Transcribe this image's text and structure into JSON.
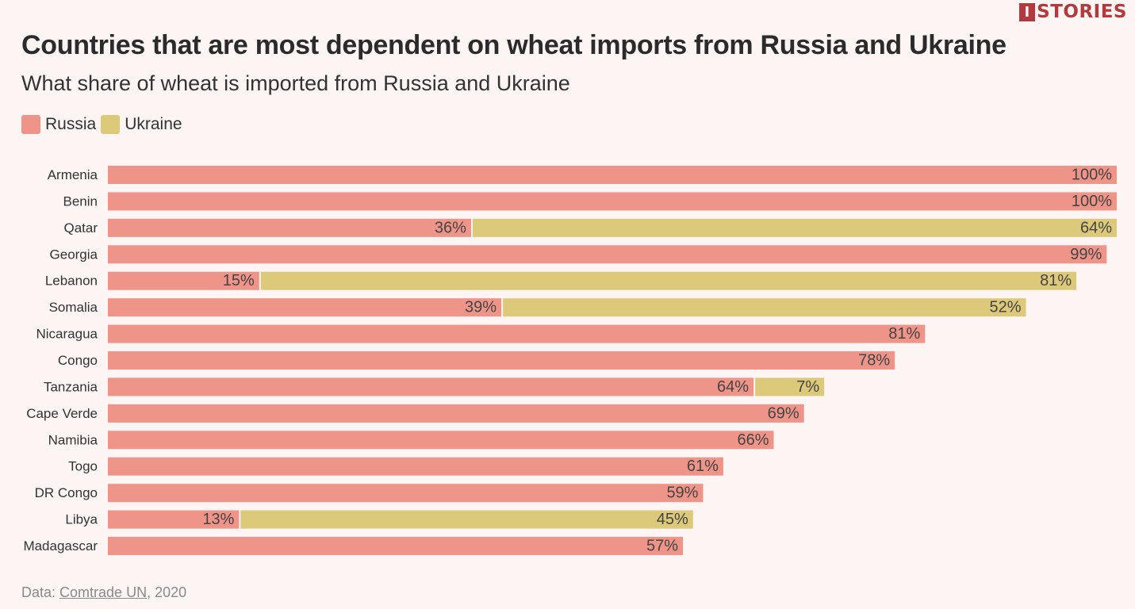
{
  "brand": {
    "logo_mark": "I",
    "logo_text": "STORIES"
  },
  "title": "Countries that are most dependent on wheat imports from Russia and Ukraine",
  "subtitle": "What share of wheat is imported from Russia and Ukraine",
  "legend": [
    {
      "name": "Russia",
      "color": "#ef9488"
    },
    {
      "name": "Ukraine",
      "color": "#ddc97a"
    }
  ],
  "footer": {
    "prefix": "Data: ",
    "link_text": "Comtrade UN",
    "suffix": ", 2020"
  },
  "chart_data": {
    "type": "bar",
    "orientation": "horizontal",
    "stacked": true,
    "title": "Countries that are most dependent on wheat imports from Russia and Ukraine",
    "subtitle": "What share of wheat is imported from Russia and Ukraine",
    "xlim": [
      0,
      100
    ],
    "grid": false,
    "legend_position": "top-left",
    "value_format": "percent",
    "categories": [
      "Armenia",
      "Benin",
      "Qatar",
      "Georgia",
      "Lebanon",
      "Somalia",
      "Nicaragua",
      "Congo",
      "Tanzania",
      "Cape Verde",
      "Namibia",
      "Togo",
      "DR Congo",
      "Libya",
      "Madagascar"
    ],
    "series": [
      {
        "name": "Russia",
        "color": "#ef9488",
        "values": [
          100,
          100,
          36,
          99,
          15,
          39,
          81,
          78,
          64,
          69,
          66,
          61,
          59,
          13,
          57
        ]
      },
      {
        "name": "Ukraine",
        "color": "#ddc97a",
        "values": [
          0,
          0,
          64,
          0,
          81,
          52,
          0,
          0,
          7,
          0,
          0,
          0,
          0,
          45,
          0
        ]
      }
    ]
  }
}
